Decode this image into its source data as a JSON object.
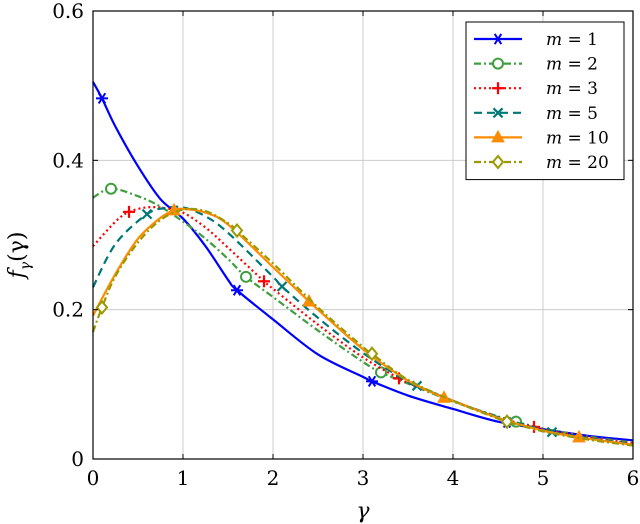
{
  "chart_data": {
    "type": "line",
    "title": "",
    "xlabel": "γ",
    "ylabel": "f_γ(γ)",
    "ylabel_main": "f",
    "ylabel_sub": "γ",
    "ylabel_arg": "(γ)",
    "xlim": [
      0,
      6
    ],
    "ylim": [
      0,
      0.6
    ],
    "xticks": [
      0,
      1,
      2,
      3,
      4,
      5,
      6
    ],
    "yticks": [
      0,
      0.2,
      0.4,
      0.6
    ],
    "xtick_labels": [
      "0",
      "1",
      "2",
      "3",
      "4",
      "5",
      "6"
    ],
    "ytick_labels": [
      "0",
      "0.2",
      "0.4",
      "0.6"
    ],
    "grid": true,
    "legend_position": "top-right",
    "series": [
      {
        "name": "m = 1",
        "m_label": "m",
        "m_value": "= 1",
        "color": "#0000ff",
        "dash": "solid",
        "marker": "asterisk",
        "x": [
          0,
          0.1,
          0.25,
          0.5,
          0.75,
          1.0,
          1.25,
          1.5,
          1.6,
          2.0,
          2.5,
          3.0,
          3.1,
          3.5,
          4.0,
          4.5,
          5.0,
          5.5,
          6.0
        ],
        "values": [
          0.505,
          0.483,
          0.445,
          0.392,
          0.348,
          0.322,
          0.285,
          0.24,
          0.226,
          0.187,
          0.14,
          0.11,
          0.104,
          0.085,
          0.067,
          0.05,
          0.04,
          0.031,
          0.025
        ],
        "marker_x": [
          0.1,
          1.6,
          3.1,
          4.6
        ],
        "marker_values": [
          0.483,
          0.226,
          0.104,
          0.049
        ]
      },
      {
        "name": "m = 2",
        "m_label": "m",
        "m_value": "= 2",
        "color": "#3f9f3f",
        "dash": "dashdot",
        "marker": "circle",
        "x": [
          0,
          0.2,
          0.5,
          0.75,
          1.0,
          1.25,
          1.5,
          1.7,
          2.0,
          2.5,
          3.0,
          3.2,
          3.5,
          4.0,
          4.5,
          4.7,
          5.0,
          5.5,
          6.0
        ],
        "values": [
          0.35,
          0.362,
          0.352,
          0.338,
          0.318,
          0.295,
          0.268,
          0.244,
          0.217,
          0.172,
          0.13,
          0.116,
          0.101,
          0.077,
          0.057,
          0.05,
          0.041,
          0.03,
          0.022
        ],
        "marker_x": [
          0.2,
          1.7,
          3.2,
          4.7
        ],
        "marker_values": [
          0.362,
          0.244,
          0.116,
          0.05
        ]
      },
      {
        "name": "m = 3",
        "m_label": "m",
        "m_value": "= 3",
        "color": "#ff0000",
        "dash": "dotted",
        "marker": "plus",
        "x": [
          0,
          0.25,
          0.4,
          0.6,
          0.8,
          1.0,
          1.25,
          1.5,
          1.9,
          2.0,
          2.5,
          3.0,
          3.4,
          3.5,
          4.0,
          4.5,
          4.9,
          5.0,
          5.5,
          6.0
        ],
        "values": [
          0.285,
          0.318,
          0.331,
          0.337,
          0.336,
          0.33,
          0.31,
          0.283,
          0.238,
          0.228,
          0.18,
          0.136,
          0.108,
          0.102,
          0.078,
          0.056,
          0.043,
          0.04,
          0.029,
          0.021
        ],
        "marker_x": [
          0.4,
          1.9,
          3.4,
          4.9
        ],
        "marker_values": [
          0.331,
          0.238,
          0.108,
          0.043
        ]
      },
      {
        "name": "m = 5",
        "m_label": "m",
        "m_value": "= 5",
        "color": "#007777",
        "dash": "dashed",
        "marker": "cross",
        "x": [
          0,
          0.25,
          0.6,
          0.8,
          1.0,
          1.25,
          1.5,
          2.0,
          2.1,
          2.5,
          3.0,
          3.5,
          3.6,
          4.0,
          4.5,
          5.0,
          5.1,
          5.5,
          6.0
        ],
        "values": [
          0.23,
          0.288,
          0.328,
          0.336,
          0.337,
          0.325,
          0.303,
          0.244,
          0.231,
          0.189,
          0.142,
          0.103,
          0.098,
          0.078,
          0.056,
          0.039,
          0.036,
          0.028,
          0.02
        ],
        "marker_x": [
          0.6,
          2.1,
          3.6,
          5.1
        ],
        "marker_values": [
          0.328,
          0.231,
          0.098,
          0.036
        ]
      },
      {
        "name": "m = 10",
        "m_label": "m",
        "m_value": "= 10",
        "color": "#ff8c00",
        "dash": "solid",
        "marker": "triangle",
        "x": [
          0,
          0.25,
          0.5,
          0.75,
          0.9,
          1.0,
          1.25,
          1.5,
          2.0,
          2.4,
          2.5,
          3.0,
          3.5,
          3.9,
          4.0,
          4.5,
          5.0,
          5.4,
          5.5,
          6.0
        ],
        "values": [
          0.192,
          0.248,
          0.295,
          0.323,
          0.333,
          0.335,
          0.33,
          0.314,
          0.257,
          0.211,
          0.2,
          0.147,
          0.105,
          0.082,
          0.078,
          0.055,
          0.038,
          0.029,
          0.027,
          0.019
        ],
        "marker_x": [
          0.9,
          2.4,
          3.9,
          5.4
        ],
        "marker_values": [
          0.333,
          0.211,
          0.082,
          0.029
        ]
      },
      {
        "name": "m = 20",
        "m_label": "m",
        "m_value": "= 20",
        "color": "#9a9a00",
        "dash": "dashdot",
        "marker": "diamond",
        "x": [
          0,
          0.1,
          0.25,
          0.5,
          0.75,
          1.0,
          1.25,
          1.5,
          1.6,
          2.0,
          2.5,
          3.0,
          3.1,
          3.5,
          4.0,
          4.5,
          4.6,
          5.0,
          5.5,
          6.0
        ],
        "values": [
          0.17,
          0.203,
          0.245,
          0.29,
          0.32,
          0.334,
          0.332,
          0.316,
          0.306,
          0.262,
          0.203,
          0.15,
          0.141,
          0.106,
          0.078,
          0.054,
          0.05,
          0.037,
          0.026,
          0.018
        ],
        "marker_x": [
          0.1,
          1.6,
          3.1,
          4.6
        ],
        "marker_values": [
          0.203,
          0.306,
          0.141,
          0.05
        ]
      }
    ]
  }
}
